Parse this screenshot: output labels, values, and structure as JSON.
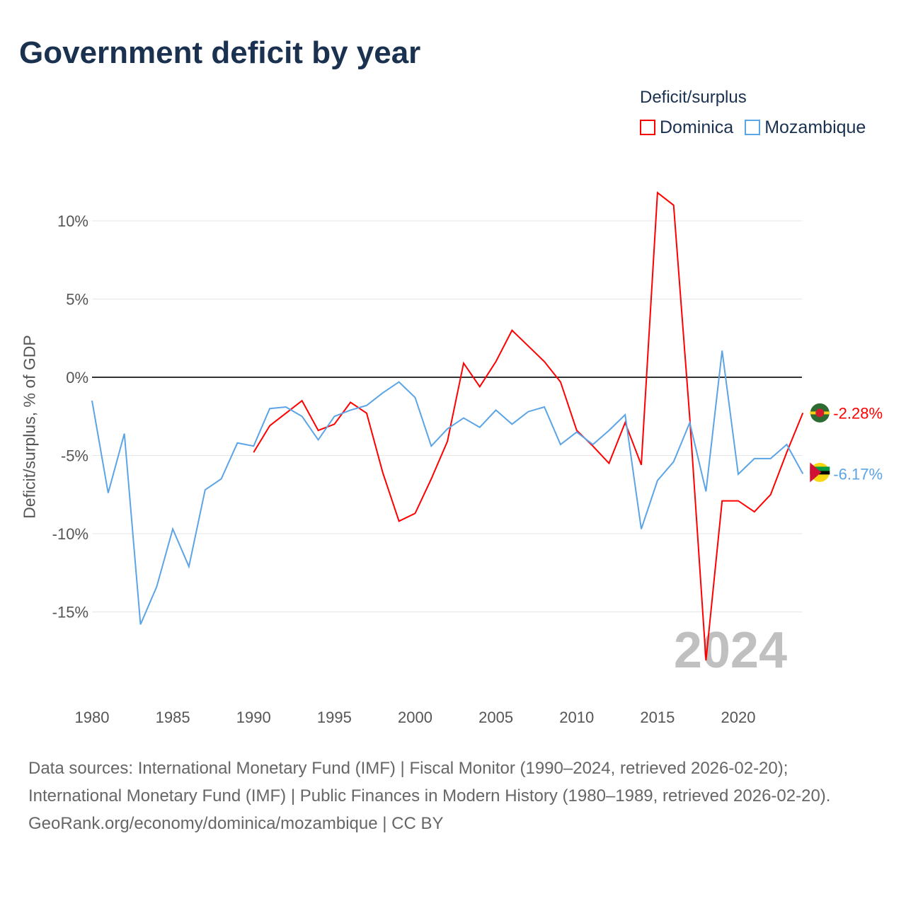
{
  "title": "Government deficit by year",
  "legend": {
    "title": "Deficit/surplus",
    "items": [
      {
        "label": "Dominica",
        "color": "#ff0000"
      },
      {
        "label": "Mozambique",
        "color": "#5ba4e6"
      }
    ]
  },
  "footer": {
    "sources": "Data sources: International Monetary Fund (IMF) | Fiscal Monitor (1990–2024, retrieved 2026-02-20); International Monetary Fund (IMF) | Public Finances in Modern History (1980–1989, retrieved 2026-02-20).",
    "credit": "GeoRank.org/economy/dominica/mozambique | CC BY"
  },
  "chart_data": {
    "type": "line",
    "title": "Government deficit by year",
    "xlabel": "",
    "ylabel": "Deficit/surplus, % of GDP",
    "xlim": [
      1980,
      2024
    ],
    "ylim": [
      -19,
      12
    ],
    "yticks": [
      10,
      5,
      0,
      -5,
      -10,
      -15
    ],
    "ytick_labels": [
      "10%",
      "5%",
      "0%",
      "-5%",
      "-10%",
      "-15%"
    ],
    "xticks": [
      1980,
      1985,
      1990,
      1995,
      2000,
      2005,
      2010,
      2015,
      2020
    ],
    "xtick_labels": [
      "1980",
      "1985",
      "1990",
      "1995",
      "2000",
      "2005",
      "2010",
      "2015",
      "2020"
    ],
    "year_watermark": "2024",
    "series": [
      {
        "name": "Dominica",
        "color": "#ff0000",
        "start": 1990,
        "end_label": "-2.28%",
        "values": [
          -4.8,
          -3.1,
          -2.3,
          -1.5,
          -3.4,
          -3.0,
          -1.6,
          -2.3,
          -6.1,
          -9.2,
          -8.7,
          -6.5,
          -4.1,
          0.9,
          -0.6,
          1.0,
          3.0,
          2.0,
          1.0,
          -0.3,
          -3.4,
          -4.4,
          -5.5,
          -2.9,
          -5.6,
          11.8,
          11.0,
          -2.6,
          -18.1,
          -7.9,
          -7.9,
          -8.6,
          -7.5,
          -4.8,
          -2.28
        ]
      },
      {
        "name": "Mozambique",
        "color": "#5ba4e6",
        "start": 1980,
        "end_label": "-6.17%",
        "values": [
          -1.5,
          -7.4,
          -3.6,
          -15.8,
          -13.4,
          -9.7,
          -12.1,
          -7.2,
          -6.5,
          -4.2,
          -4.4,
          -2.0,
          -1.9,
          -2.5,
          -4.0,
          -2.5,
          -2.1,
          -1.8,
          -1.0,
          -0.3,
          -1.3,
          -4.4,
          -3.3,
          -2.6,
          -3.2,
          -2.1,
          -3.0,
          -2.2,
          -1.9,
          -4.3,
          -3.5,
          -4.3,
          -3.4,
          -2.4,
          -9.7,
          -6.6,
          -5.4,
          -2.9,
          -7.3,
          1.7,
          -6.2,
          -5.2,
          -5.2,
          -4.3,
          -6.17
        ]
      }
    ]
  }
}
